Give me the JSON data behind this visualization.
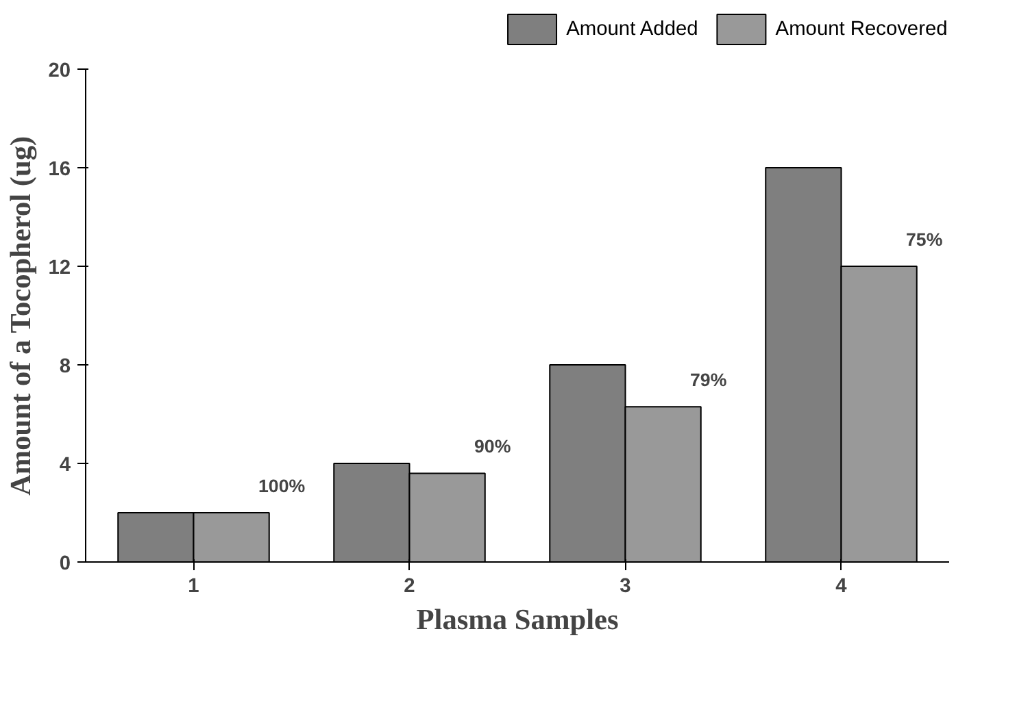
{
  "chart_data": {
    "type": "bar",
    "xlabel": "Plasma Samples",
    "ylabel": "Amount of a Tocopherol (ug)",
    "categories": [
      "1",
      "2",
      "3",
      "4"
    ],
    "series": [
      {
        "name": "Amount Added",
        "color": "#7f7f7f",
        "values": [
          2,
          4,
          8,
          16
        ]
      },
      {
        "name": "Amount Recovered",
        "color": "#999999",
        "values": [
          2,
          3.6,
          6.3,
          12
        ]
      }
    ],
    "annotations": [
      "100%",
      "90%",
      "79%",
      "75%"
    ],
    "ylim": [
      0,
      20
    ],
    "yticks": [
      0,
      4,
      8,
      12,
      16,
      20
    ],
    "grid": false,
    "legend": "top right"
  }
}
